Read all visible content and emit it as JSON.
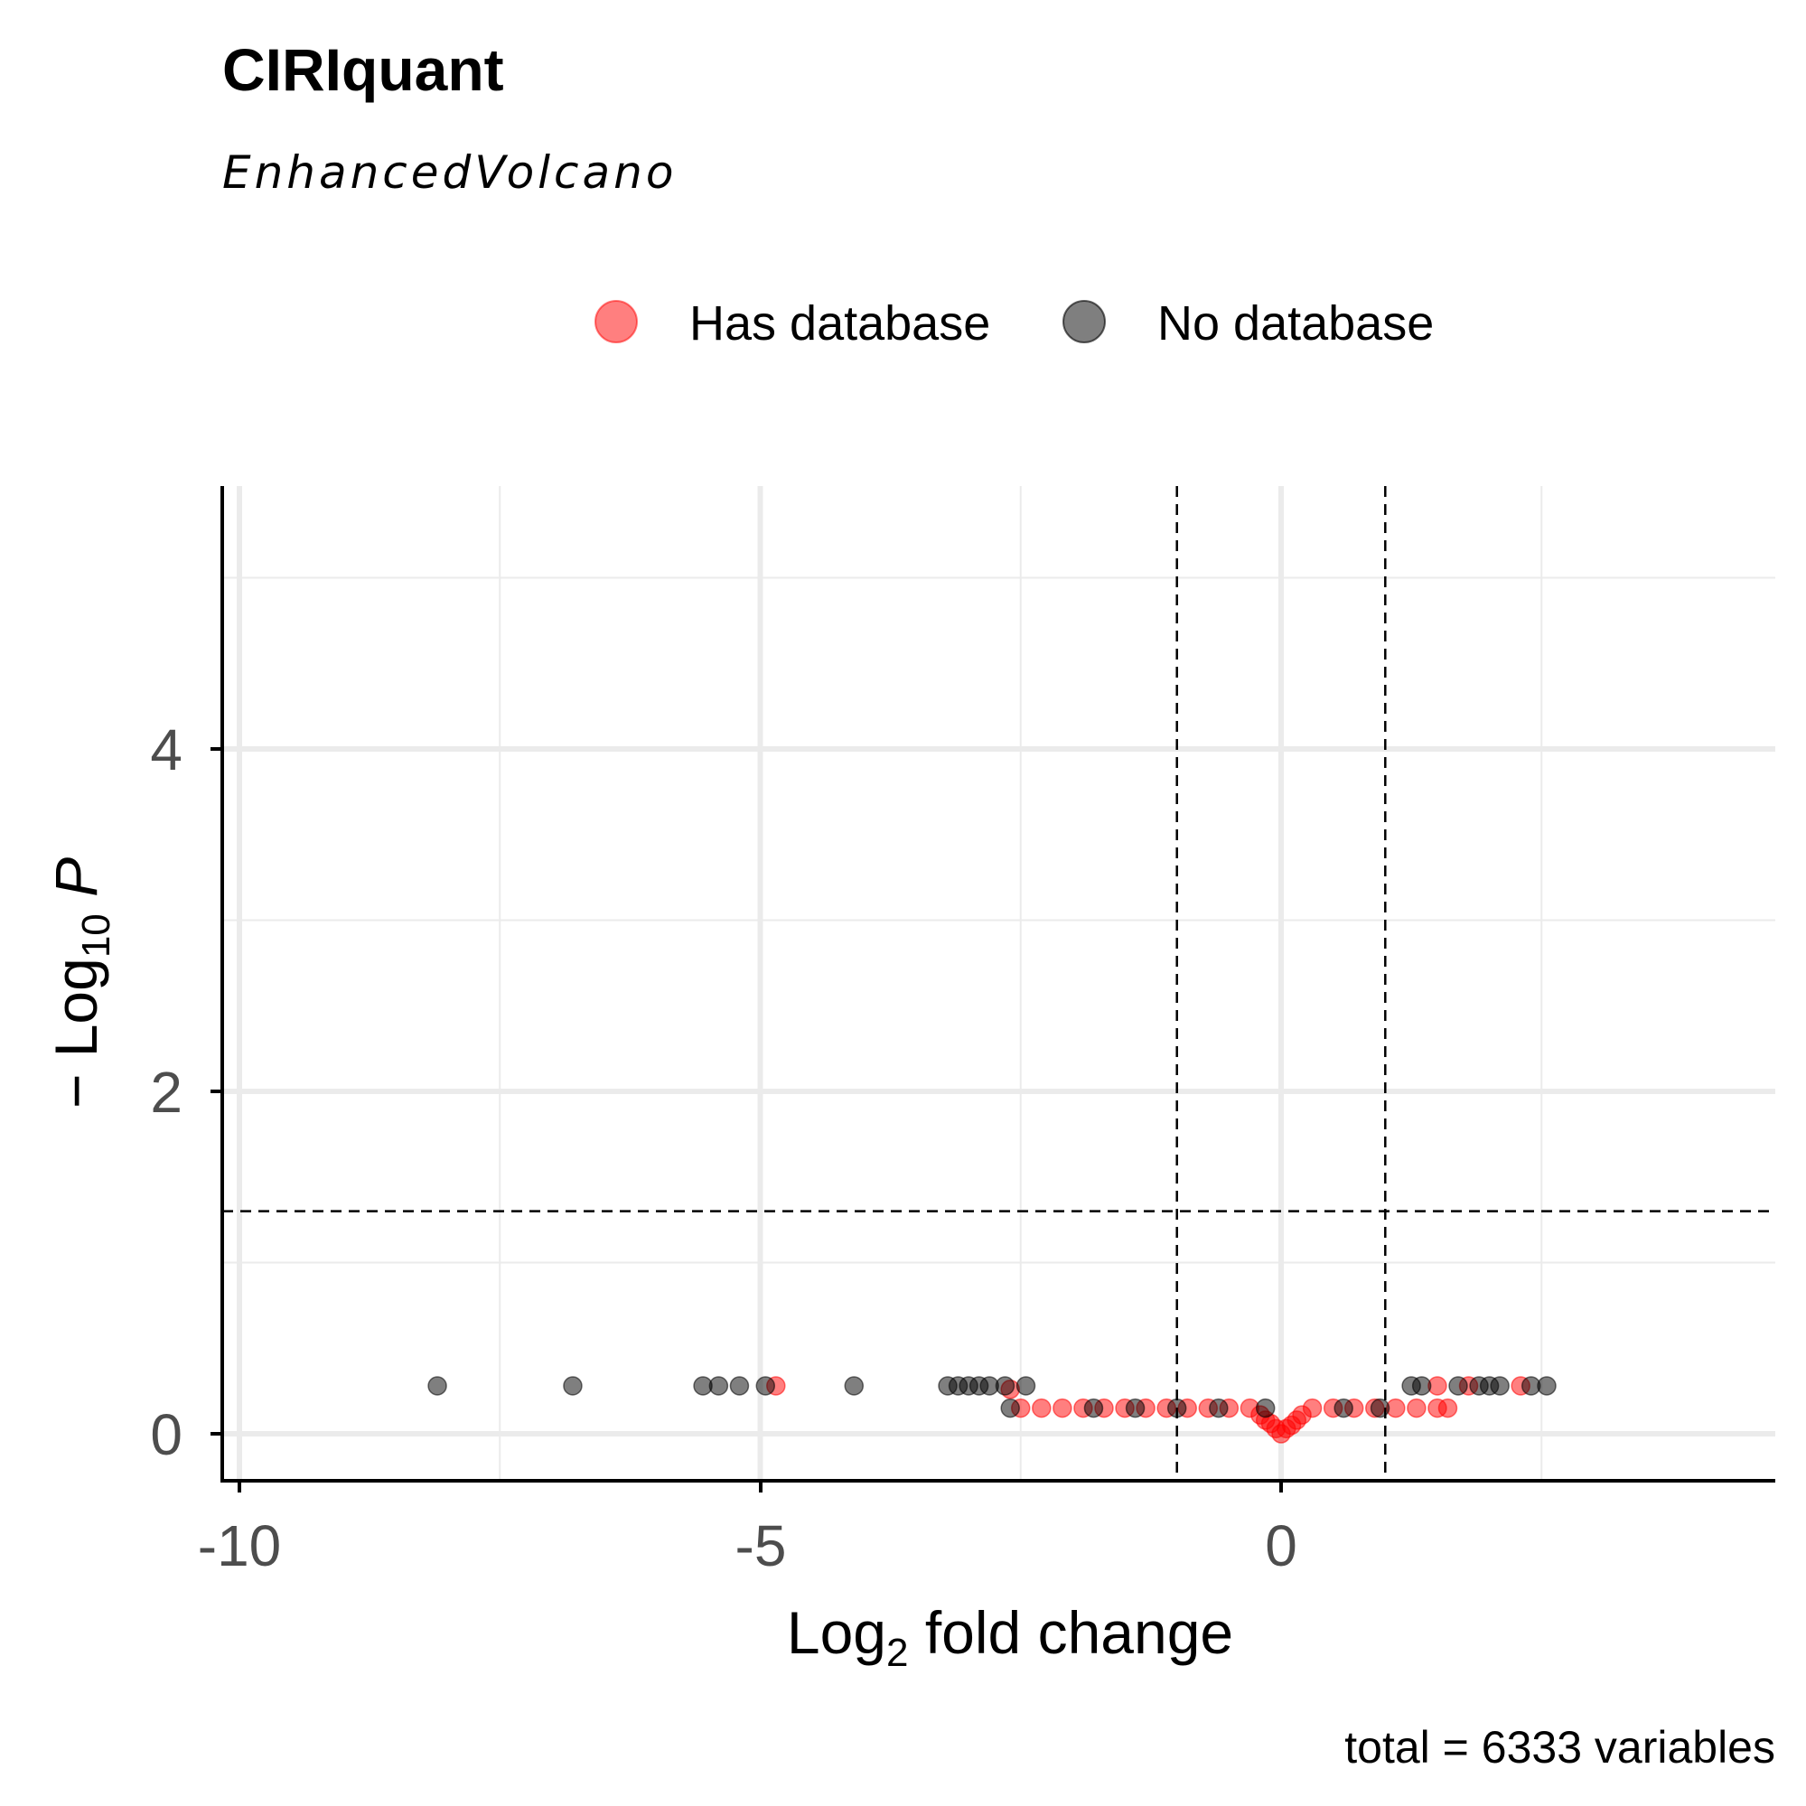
{
  "title": "CIRIquant",
  "subtitle": "EnhancedVolcano",
  "caption": "total = 6333 variables",
  "legend": [
    {
      "label": "Has database",
      "color": "#ff0000"
    },
    {
      "label": "No database",
      "color": "#000000"
    }
  ],
  "axes": {
    "x_title_main": "Log",
    "x_title_sub": "2",
    "x_title_rest": " fold change",
    "y_title_prefix": "− Log",
    "y_title_sub": "10",
    "y_title_var": "P",
    "x_ticks": [
      "-10",
      "-5",
      "0"
    ],
    "y_ticks": [
      "0",
      "2",
      "4"
    ]
  },
  "chart_data": {
    "type": "scatter",
    "title": "CIRIquant",
    "subtitle": "EnhancedVolcano",
    "xlabel": "Log2 fold change",
    "ylabel": "-Log10 P",
    "xlim": [
      -10.1,
      4.7
    ],
    "ylim": [
      -0.27,
      5.5
    ],
    "x_ticks": [
      -10,
      -5,
      0
    ],
    "y_ticks": [
      0,
      2,
      4
    ],
    "grid": true,
    "legend_position": "top",
    "thresholds": {
      "fold_change": [
        -1,
        1
      ],
      "p_value_neglog10": 1.3
    },
    "series": [
      {
        "name": "Has database",
        "color": "#ff0000",
        "points": [
          [
            -4.85,
            0.28
          ],
          [
            -2.6,
            0.26
          ],
          [
            -2.5,
            0.15
          ],
          [
            -2.3,
            0.15
          ],
          [
            -2.1,
            0.15
          ],
          [
            -1.9,
            0.15
          ],
          [
            -1.7,
            0.15
          ],
          [
            -1.5,
            0.15
          ],
          [
            -1.3,
            0.15
          ],
          [
            -1.1,
            0.15
          ],
          [
            -0.9,
            0.15
          ],
          [
            -0.7,
            0.15
          ],
          [
            -0.5,
            0.15
          ],
          [
            -0.3,
            0.15
          ],
          [
            -0.2,
            0.11
          ],
          [
            -0.15,
            0.08
          ],
          [
            -0.1,
            0.06
          ],
          [
            -0.05,
            0.03
          ],
          [
            0.0,
            0.0
          ],
          [
            0.05,
            0.03
          ],
          [
            0.1,
            0.05
          ],
          [
            0.15,
            0.08
          ],
          [
            0.2,
            0.11
          ],
          [
            0.3,
            0.15
          ],
          [
            0.5,
            0.15
          ],
          [
            0.7,
            0.15
          ],
          [
            0.9,
            0.15
          ],
          [
            1.1,
            0.15
          ],
          [
            1.3,
            0.15
          ],
          [
            1.5,
            0.15
          ],
          [
            1.6,
            0.15
          ],
          [
            1.5,
            0.28
          ],
          [
            1.8,
            0.28
          ],
          [
            2.3,
            0.28
          ]
        ]
      },
      {
        "name": "No database",
        "color": "#000000",
        "points": [
          [
            -8.1,
            0.28
          ],
          [
            -6.8,
            0.28
          ],
          [
            -5.55,
            0.28
          ],
          [
            -5.4,
            0.28
          ],
          [
            -5.2,
            0.28
          ],
          [
            -4.95,
            0.28
          ],
          [
            -4.1,
            0.28
          ],
          [
            -3.2,
            0.28
          ],
          [
            -3.1,
            0.28
          ],
          [
            -3.0,
            0.28
          ],
          [
            -2.9,
            0.28
          ],
          [
            -2.8,
            0.28
          ],
          [
            -2.65,
            0.28
          ],
          [
            -2.45,
            0.28
          ],
          [
            -2.6,
            0.15
          ],
          [
            -1.8,
            0.15
          ],
          [
            -1.4,
            0.15
          ],
          [
            -1.0,
            0.15
          ],
          [
            -0.6,
            0.15
          ],
          [
            -0.15,
            0.15
          ],
          [
            0.6,
            0.15
          ],
          [
            0.95,
            0.15
          ],
          [
            1.25,
            0.28
          ],
          [
            1.35,
            0.28
          ],
          [
            1.7,
            0.28
          ],
          [
            1.9,
            0.28
          ],
          [
            2.0,
            0.28
          ],
          [
            2.1,
            0.28
          ],
          [
            2.4,
            0.28
          ],
          [
            2.55,
            0.28
          ]
        ]
      }
    ]
  }
}
